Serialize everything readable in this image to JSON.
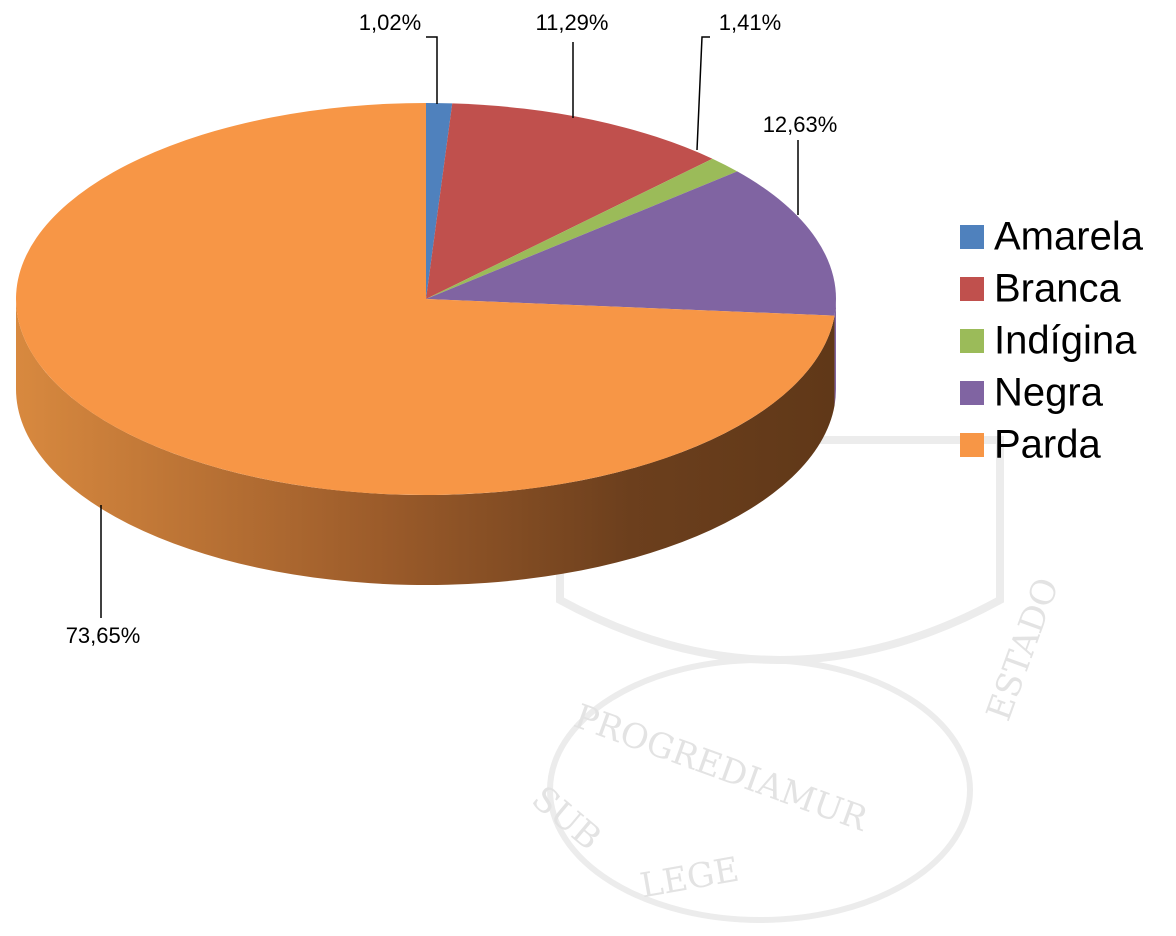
{
  "chart_data": {
    "type": "pie3d",
    "categories": [
      "Amarela",
      "Branca",
      "Indígina",
      "Negra",
      "Parda"
    ],
    "values": [
      1.02,
      11.29,
      1.41,
      12.63,
      73.65
    ],
    "value_labels": [
      "1,02%",
      "11,29%",
      "1,41%",
      "12,63%",
      "73,65%"
    ],
    "colors": [
      "#4f81bd",
      "#c0504d",
      "#9bbb59",
      "#8064a2",
      "#f79646"
    ],
    "legend": "right",
    "watermark": [
      "SUB",
      "PROGREDIAMUR",
      "LEGE",
      "ESTADO"
    ]
  }
}
